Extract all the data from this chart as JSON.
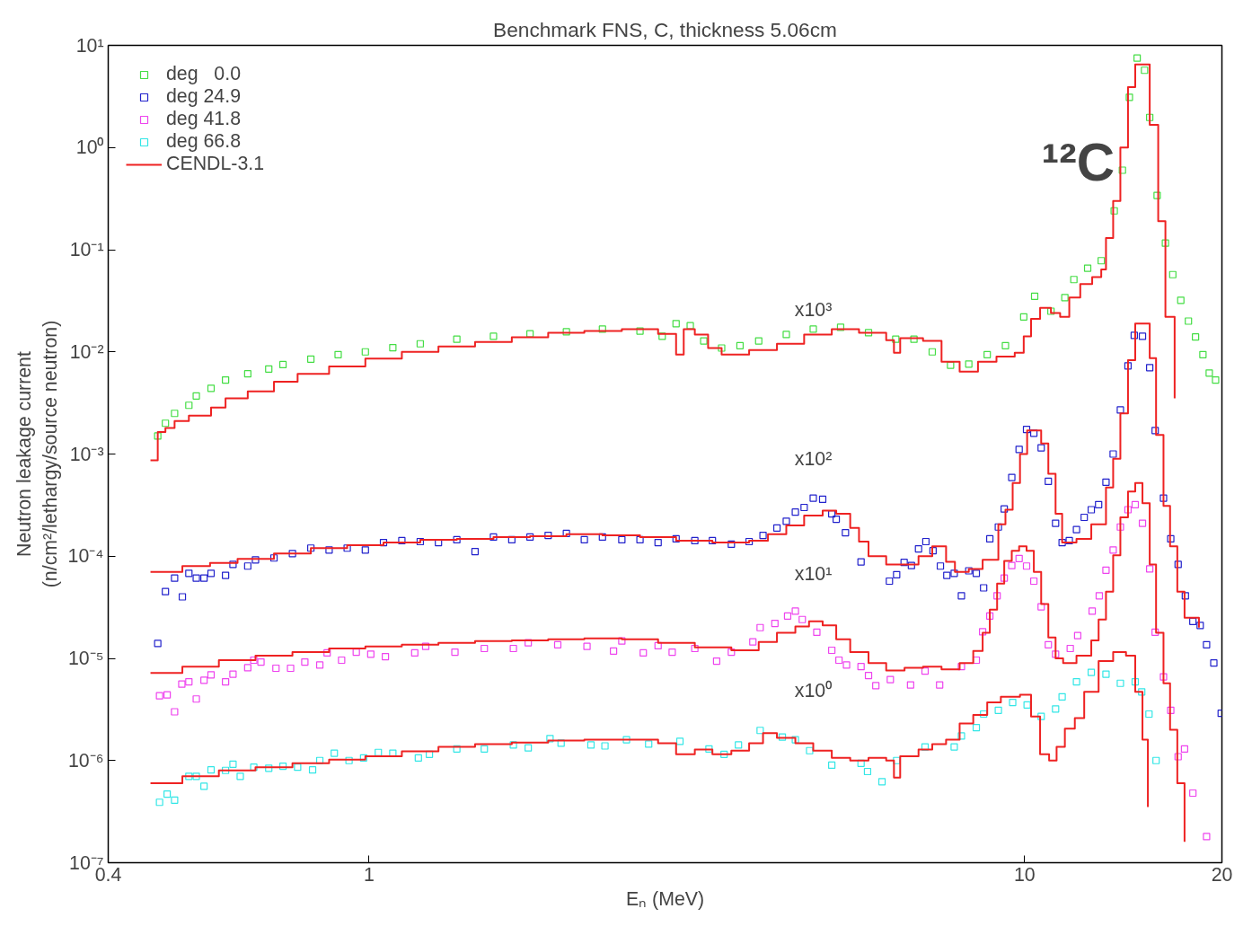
{
  "chart_data": {
    "type": "scatter",
    "title": "Benchmark FNS, C, thickness 5.06cm",
    "xlabel": "Eₙ (MeV)",
    "ylabel": "Neutron leakage current\n(n/cm²/lethargy/source neutron)",
    "log": "xy",
    "xlim": [
      0.4,
      20
    ],
    "ylim": [
      1e-07,
      10
    ],
    "xticks": [
      0.4,
      1,
      10,
      20
    ],
    "yticks": [
      {
        "value": 1e-07,
        "label": "10⁻⁷"
      },
      {
        "value": 1e-06,
        "label": "10⁻⁶"
      },
      {
        "value": 1e-05,
        "label": "10⁻⁵"
      },
      {
        "value": 0.0001,
        "label": "10⁻⁴"
      },
      {
        "value": 0.001,
        "label": "10⁻³"
      },
      {
        "value": 0.01,
        "label": "10⁻²"
      },
      {
        "value": 0.1,
        "label": "10⁻¹"
      },
      {
        "value": 1,
        "label": "10⁰"
      },
      {
        "value": 10,
        "label": "10¹"
      }
    ],
    "grid": false,
    "legend": "top left",
    "marker": "square",
    "series": [
      {
        "name": "deg   0.0",
        "color": "#44dd44",
        "x": [
          0.476,
          0.489,
          0.505,
          0.531,
          0.545,
          0.574,
          0.604,
          0.653,
          0.703,
          0.739,
          0.815,
          0.897,
          0.987,
          1.087,
          1.197,
          1.361,
          1.548,
          1.76,
          2.0,
          2.27,
          2.59,
          2.8,
          2.94,
          3.09,
          3.24,
          3.45,
          3.68,
          3.93,
          4.33,
          4.76,
          5.24,
          5.78,
          6.36,
          6.78,
          7.23,
          7.71,
          8.22,
          8.77,
          9.35,
          9.97,
          10.36,
          10.97,
          11.52,
          11.89,
          12.48,
          13.09,
          13.7,
          14.1,
          14.45,
          14.85,
          15.24,
          15.52,
          15.93,
          16.4,
          16.83,
          17.31,
          17.78,
          18.23,
          18.71,
          19.13,
          19.56
        ],
        "values": [
          0.0015,
          0.002,
          0.0025,
          0.003,
          0.0037,
          0.0044,
          0.0053,
          0.0061,
          0.0068,
          0.0075,
          0.0085,
          0.0094,
          0.01,
          0.011,
          0.012,
          0.0133,
          0.0142,
          0.015,
          0.0157,
          0.0167,
          0.016,
          0.0142,
          0.0189,
          0.018,
          0.0128,
          0.0109,
          0.0115,
          0.0128,
          0.0148,
          0.0167,
          0.0174,
          0.0154,
          0.0133,
          0.0133,
          0.01,
          0.0074,
          0.0076,
          0.0094,
          0.0115,
          0.022,
          0.035,
          0.025,
          0.034,
          0.051,
          0.066,
          0.078,
          0.24,
          0.6,
          3.1,
          7.5,
          5.7,
          1.97,
          0.34,
          0.116,
          0.057,
          0.032,
          0.02,
          0.014,
          0.0094,
          0.0062,
          0.0053
        ]
      },
      {
        "name": "deg 24.9",
        "color": "#2222cc",
        "x": [
          0.476,
          0.489,
          0.505,
          0.519,
          0.531,
          0.545,
          0.56,
          0.574,
          0.604,
          0.62,
          0.653,
          0.671,
          0.716,
          0.764,
          0.815,
          0.869,
          0.926,
          0.987,
          1.052,
          1.122,
          1.197,
          1.276,
          1.361,
          1.451,
          1.548,
          1.651,
          1.76,
          1.876,
          2.0,
          2.13,
          2.27,
          2.43,
          2.59,
          2.76,
          2.94,
          3.14,
          3.34,
          3.57,
          3.8,
          3.99,
          4.19,
          4.33,
          4.47,
          4.61,
          4.76,
          4.92,
          5.08,
          5.16,
          5.33,
          5.63,
          6.22,
          6.38,
          6.55,
          6.72,
          6.89,
          7.07,
          7.25,
          7.44,
          7.61,
          7.81,
          8.01,
          8.22,
          8.44,
          8.66,
          8.85,
          9.12,
          9.31,
          9.56,
          9.81,
          10.07,
          10.33,
          10.6,
          10.87,
          11.15,
          11.41,
          11.7,
          12.0,
          12.33,
          12.64,
          12.97,
          13.31,
          13.65,
          14.0,
          14.38,
          14.7,
          15.13,
          15.52,
          15.82,
          16.29,
          16.71,
          17.15,
          17.59,
          18.06,
          18.53,
          18.95,
          19.44,
          19.95
        ],
        "values": [
          1.4e-05,
          4.5e-05,
          6.1e-05,
          4e-05,
          6.8e-05,
          6.1e-05,
          6.1e-05,
          6.8e-05,
          6.5e-05,
          8.3e-05,
          8e-05,
          9.2e-05,
          9.6e-05,
          0.000106,
          0.00012,
          0.000115,
          0.00012,
          0.000115,
          0.000136,
          0.000142,
          0.000139,
          0.000136,
          0.000145,
          0.000111,
          0.000154,
          0.000145,
          0.000154,
          0.00016,
          0.000167,
          0.000145,
          0.000154,
          0.000145,
          0.000145,
          0.000136,
          0.000148,
          0.000142,
          0.000142,
          0.000131,
          0.000139,
          0.00016,
          0.000189,
          0.00022,
          0.00027,
          0.0003,
          0.00037,
          0.00036,
          0.00026,
          0.00023,
          0.00017,
          8.8e-05,
          5.7e-05,
          6.6e-05,
          8.7e-05,
          8.1e-05,
          0.000118,
          0.000139,
          0.000113,
          8e-05,
          6.5e-05,
          6.8e-05,
          4.1e-05,
          7.2e-05,
          6.8e-05,
          4.9e-05,
          0.000148,
          0.000193,
          0.00029,
          0.00059,
          0.00111,
          0.00174,
          0.0016,
          0.00115,
          0.00054,
          0.00021,
          0.000136,
          0.000142,
          0.000182,
          0.00024,
          0.000285,
          0.00032,
          0.00053,
          0.001,
          0.0027,
          0.0073,
          0.0145,
          0.0142,
          0.007,
          0.0017,
          0.00037,
          0.000148,
          8.3e-05,
          4.1e-05,
          2.3e-05,
          2.1e-05,
          1.36e-05,
          9e-06,
          2.9e-06
        ]
      },
      {
        "name": "deg 41.8",
        "color": "#ee44ee",
        "x": [
          0.479,
          0.492,
          0.505,
          0.518,
          0.531,
          0.545,
          0.56,
          0.574,
          0.604,
          0.62,
          0.653,
          0.667,
          0.684,
          0.721,
          0.759,
          0.798,
          0.841,
          0.863,
          0.908,
          0.956,
          1.006,
          1.059,
          1.174,
          1.22,
          1.352,
          1.499,
          1.66,
          1.749,
          1.94,
          2.15,
          2.36,
          2.43,
          2.62,
          2.76,
          2.9,
          3.14,
          3.39,
          3.57,
          3.85,
          3.95,
          4.16,
          4.35,
          4.47,
          4.58,
          4.82,
          5.08,
          5.21,
          5.35,
          5.63,
          5.78,
          5.93,
          6.24,
          6.7,
          7.05,
          7.42,
          8.01,
          8.44,
          8.63,
          8.85,
          9.08,
          9.31,
          9.56,
          9.81,
          10.07,
          10.33,
          10.6,
          10.87,
          11.15,
          11.74,
          12.05,
          12.68,
          13.0,
          13.31,
          13.65,
          14.0,
          14.38,
          14.75,
          15.13,
          15.52,
          15.82,
          16.29,
          16.71,
          17.15,
          17.54,
          18.06,
          18.95
        ],
        "values": [
          4.3e-06,
          4.4e-06,
          3e-06,
          5.6e-06,
          5.9e-06,
          4e-06,
          6.1e-06,
          6.9e-06,
          5.9e-06,
          7e-06,
          8.1e-06,
          9.6e-06,
          9.2e-06,
          8e-06,
          8e-06,
          9.2e-06,
          8.6e-06,
          1.13e-05,
          9.6e-06,
          1.15e-05,
          1.1e-05,
          1.04e-05,
          1.13e-05,
          1.31e-05,
          1.15e-05,
          1.25e-05,
          1.25e-05,
          1.42e-05,
          1.36e-05,
          1.31e-05,
          1.18e-05,
          1.48e-05,
          1.13e-05,
          1.33e-05,
          1.15e-05,
          1.25e-05,
          9.4e-06,
          1.15e-05,
          1.45e-05,
          2e-05,
          2.2e-05,
          2.6e-05,
          2.9e-05,
          2.4e-05,
          1.8e-05,
          1.2e-05,
          9.6e-06,
          8.6e-06,
          8.3e-06,
          6.8e-06,
          5.4e-06,
          6.2e-06,
          5.5e-06,
          7.5e-06,
          5.5e-06,
          8.3e-06,
          9.6e-06,
          1.82e-05,
          2.6e-05,
          4.1e-05,
          6.1e-05,
          8.1e-05,
          9.5e-05,
          8e-05,
          5.7e-05,
          3.2e-05,
          1.36e-05,
          1.1e-05,
          1.25e-05,
          1.67e-05,
          2.9e-05,
          4.1e-05,
          7.3e-05,
          0.000115,
          0.000193,
          0.000285,
          0.00032,
          0.00021,
          7.5e-05,
          1.8e-05,
          6.6e-06,
          3.1e-06,
          1.09e-06,
          1.3e-06,
          4.8e-07,
          1.8e-07
        ]
      },
      {
        "name": "deg 66.8",
        "color": "#33e6e6",
        "x": [
          0.479,
          0.492,
          0.505,
          0.531,
          0.545,
          0.56,
          0.574,
          0.604,
          0.62,
          0.636,
          0.667,
          0.703,
          0.739,
          0.778,
          0.82,
          0.841,
          0.885,
          0.932,
          0.981,
          1.033,
          1.087,
          1.189,
          1.236,
          1.361,
          1.499,
          1.66,
          1.749,
          1.888,
          1.963,
          2.18,
          2.29,
          2.47,
          2.67,
          2.98,
          3.3,
          3.48,
          3.66,
          3.95,
          4.27,
          4.47,
          4.7,
          5.08,
          5.63,
          5.76,
          6.06,
          6.38,
          7.05,
          7.81,
          8.01,
          8.44,
          8.66,
          9.12,
          9.59,
          10.09,
          10.6,
          11.15,
          11.41,
          12.0,
          12.64,
          13.31,
          14.0,
          14.75,
          15.09,
          15.48,
          15.87
        ],
        "values": [
          3.9e-07,
          4.7e-07,
          4.1e-07,
          7e-07,
          7e-07,
          5.6e-07,
          8.1e-07,
          8e-07,
          9.2e-07,
          7e-07,
          8.6e-07,
          8.4e-07,
          8.8e-07,
          8.6e-07,
          8.1e-07,
          1e-06,
          1.18e-06,
          1e-06,
          1.06e-06,
          1.2e-06,
          1.18e-06,
          1.06e-06,
          1.15e-06,
          1.3e-06,
          1.3e-06,
          1.42e-06,
          1.33e-06,
          1.64e-06,
          1.48e-06,
          1.42e-06,
          1.39e-06,
          1.6e-06,
          1.45e-06,
          1.54e-06,
          1.3e-06,
          1.15e-06,
          1.42e-06,
          1.97e-06,
          1.7e-06,
          1.6e-06,
          1.25e-06,
          9e-07,
          9.4e-07,
          7.8e-07,
          6.2e-07,
          1e-06,
          1.36e-06,
          1.36e-06,
          1.74e-06,
          2.1e-06,
          2.85e-06,
          3.1e-06,
          3.7e-06,
          3.5e-06,
          2.7e-06,
          3.2e-06,
          4.2e-06,
          5.9e-06,
          7.3e-06,
          7e-06,
          5.7e-06,
          5.9e-06,
          4.7e-06,
          2.85e-06,
          1e-06
        ]
      },
      {
        "name": "CENDL-3.1",
        "type": "step",
        "marker": "none",
        "color": "#ee2222",
        "x": [
          0.464,
          0.476,
          0.489,
          0.505,
          0.531,
          0.574,
          0.604,
          0.653,
          0.716,
          0.778,
          0.869,
          0.987,
          1.122,
          1.276,
          1.451,
          1.651,
          1.876,
          2.13,
          2.43,
          2.76,
          2.94,
          3.02,
          3.14,
          3.29,
          3.45,
          3.8,
          4.19,
          4.61,
          5.08,
          5.59,
          6.15,
          6.32,
          6.46,
          7.0,
          7.47,
          7.96,
          8.49,
          9.06,
          9.66,
          9.97,
          10.23,
          10.56,
          10.97,
          11.33,
          11.7,
          12.16,
          12.68,
          13.09,
          13.31,
          13.65,
          14.0,
          14.38,
          14.75,
          15.13,
          15.52,
          15.99,
          16.4,
          16.94
        ],
        "values": [
          0.00087,
          0.00164,
          0.0018,
          0.0021,
          0.00237,
          0.00285,
          0.0035,
          0.0041,
          0.0051,
          0.0061,
          0.0072,
          0.0086,
          0.01,
          0.0113,
          0.0125,
          0.0139,
          0.0154,
          0.016,
          0.0167,
          0.015,
          0.0094,
          0.0167,
          0.0148,
          0.0109,
          0.0094,
          0.0104,
          0.012,
          0.0148,
          0.0167,
          0.0154,
          0.013,
          0.0098,
          0.0136,
          0.0128,
          0.008,
          0.0064,
          0.008,
          0.009,
          0.0098,
          0.0142,
          0.021,
          0.027,
          0.024,
          0.022,
          0.034,
          0.046,
          0.054,
          0.064,
          0.13,
          0.3,
          1.0,
          3.9,
          6.5,
          6.5,
          1.67,
          0.19,
          0.022,
          0.0035
        ]
      },
      {
        "type": "step",
        "marker": "none",
        "color": "#ee2222",
        "x": [
          0.464,
          0.519,
          0.572,
          0.63,
          0.716,
          0.815,
          0.926,
          1.052,
          1.197,
          1.361,
          1.548,
          1.76,
          2.0,
          2.27,
          2.59,
          2.94,
          3.34,
          3.8,
          4.06,
          4.33,
          4.61,
          4.92,
          5.16,
          5.42,
          5.59,
          5.78,
          6.15,
          6.56,
          6.89,
          7.23,
          7.59,
          7.83,
          8.22,
          8.63,
          9.12,
          9.35,
          9.59,
          9.84,
          10.09,
          10.6,
          10.87,
          11.15,
          11.41,
          12.0,
          12.64,
          13.31,
          13.65,
          14.0,
          14.38,
          14.75,
          15.52,
          15.87,
          16.29,
          16.67,
          17.1,
          17.54,
          18.45
        ],
        "values": [
          7e-05,
          8e-05,
          8.6e-05,
          9.4e-05,
          0.000106,
          0.00012,
          0.000128,
          0.000136,
          0.000145,
          0.000148,
          0.000154,
          0.000157,
          0.000164,
          0.00016,
          0.000154,
          0.000142,
          0.000136,
          0.000142,
          0.000164,
          0.0002,
          0.00025,
          0.00028,
          0.00026,
          0.000189,
          0.000139,
          0.0001,
          8.3e-05,
          8.3e-05,
          0.0001,
          0.000125,
          8.8e-05,
          7e-05,
          7.5e-05,
          9.2e-05,
          0.000205,
          0.000285,
          0.00052,
          0.001,
          0.0017,
          0.00127,
          0.00064,
          0.00026,
          0.000136,
          0.000148,
          0.000205,
          0.00047,
          0.0009,
          0.0025,
          0.0083,
          0.0189,
          0.0087,
          0.00154,
          0.00031,
          0.000125,
          4.5e-05,
          2.5e-05,
          2e-05
        ]
      },
      {
        "type": "step",
        "marker": "none",
        "color": "#ee2222",
        "x": [
          0.464,
          0.519,
          0.59,
          0.671,
          0.764,
          0.869,
          0.987,
          1.122,
          1.276,
          1.451,
          1.651,
          1.876,
          2.13,
          2.43,
          2.76,
          3.14,
          3.57,
          3.93,
          4.19,
          4.47,
          4.69,
          4.92,
          5.16,
          5.42,
          5.78,
          6.15,
          6.56,
          7.0,
          7.47,
          7.96,
          8.35,
          8.63,
          8.85,
          9.08,
          9.31,
          9.56,
          9.81,
          10.07,
          10.33,
          10.6,
          10.87,
          11.15,
          11.45,
          12.0,
          12.64,
          12.97,
          13.31,
          13.65,
          14.0,
          14.38,
          14.75,
          15.13,
          15.52,
          15.87,
          16.29,
          16.67,
          17.1,
          17.54
        ],
        "values": [
          7.2e-06,
          8.3e-06,
          9.6e-06,
          1.06e-05,
          1.15e-05,
          1.25e-05,
          1.31e-05,
          1.36e-05,
          1.42e-05,
          1.48e-05,
          1.5e-05,
          1.54e-05,
          1.57e-05,
          1.54e-05,
          1.42e-05,
          1.28e-05,
          1.2e-05,
          1.45e-05,
          1.78e-05,
          2.05e-05,
          2.3e-05,
          2.1e-05,
          1.54e-05,
          1.15e-05,
          9e-06,
          7.6e-06,
          8.1e-06,
          8.3e-06,
          7.8e-06,
          9e-06,
          1.18e-05,
          1.78e-05,
          3e-05,
          5.4e-05,
          9e-05,
          0.000113,
          0.000125,
          0.000113,
          7e-05,
          3.4e-05,
          1.6e-05,
          1e-05,
          9e-06,
          1.06e-05,
          1.5e-05,
          2.4e-05,
          4.5e-05,
          0.000102,
          0.00024,
          0.00043,
          0.00052,
          0.00033,
          8.3e-05,
          1.78e-05,
          5.7e-06,
          2e-06,
          6e-07,
          1.6e-07
        ]
      },
      {
        "type": "step",
        "marker": "none",
        "color": "#ee2222",
        "x": [
          0.464,
          0.519,
          0.59,
          0.671,
          0.764,
          0.869,
          0.987,
          1.122,
          1.276,
          1.451,
          1.651,
          1.876,
          2.13,
          2.43,
          2.76,
          2.94,
          3.14,
          3.34,
          3.57,
          3.8,
          3.99,
          4.19,
          4.47,
          4.76,
          5.08,
          5.42,
          5.78,
          6.15,
          6.32,
          6.46,
          6.89,
          7.23,
          7.59,
          7.96,
          8.35,
          8.77,
          9.2,
          9.59,
          9.84,
          10.23,
          10.56,
          10.9,
          11.19,
          11.52,
          11.93,
          12.33,
          12.97,
          13.65,
          14.28,
          14.75,
          15.13,
          15.42
        ],
        "values": [
          6e-07,
          7e-07,
          8e-07,
          8.6e-07,
          9.4e-07,
          1.02e-06,
          1.1e-06,
          1.23e-06,
          1.36e-06,
          1.45e-06,
          1.5e-06,
          1.57e-06,
          1.6e-06,
          1.6e-06,
          1.48e-06,
          1.15e-06,
          1.28e-06,
          1.15e-06,
          1.25e-06,
          1.48e-06,
          1.85e-06,
          1.67e-06,
          1.48e-06,
          1.25e-06,
          1.06e-06,
          1e-06,
          1.06e-06,
          1e-06,
          6.8e-07,
          1.1e-06,
          1.28e-06,
          1.45e-06,
          1.6e-06,
          2.3e-06,
          2.8e-06,
          3.7e-06,
          4.2e-06,
          4.2e-06,
          4.4e-06,
          2.7e-06,
          1.15e-06,
          1e-06,
          1.36e-06,
          2.05e-06,
          2.6e-06,
          4.7e-06,
          9.4e-06,
          1.15e-05,
          1.06e-05,
          4.7e-06,
          1.6e-06,
          3.5e-07
        ]
      }
    ],
    "annotations": [
      "x10³",
      "x10²",
      "x10¹",
      "x10⁰",
      "¹²C"
    ]
  }
}
